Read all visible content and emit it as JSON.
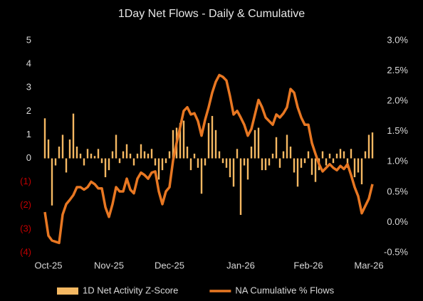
{
  "chart_data": {
    "type": "bar-line",
    "title": "1Day Net Flows - Daily & Cumulative",
    "categories": [
      null,
      "Oct-25",
      null,
      null,
      null,
      null,
      null,
      null,
      null,
      null,
      null,
      null,
      null,
      null,
      null,
      null,
      null,
      null,
      "Nov-25",
      null,
      null,
      null,
      null,
      null,
      null,
      null,
      null,
      null,
      null,
      null,
      null,
      null,
      null,
      null,
      null,
      "Dec-25",
      null,
      null,
      null,
      null,
      null,
      null,
      null,
      null,
      null,
      null,
      null,
      null,
      null,
      null,
      null,
      null,
      null,
      null,
      null,
      "Jan-26",
      null,
      null,
      null,
      null,
      null,
      null,
      null,
      null,
      null,
      null,
      null,
      null,
      null,
      null,
      null,
      null,
      null,
      null,
      "Feb-26",
      null,
      null,
      null,
      null,
      null,
      null,
      null,
      null,
      null,
      null,
      null,
      null,
      null,
      null,
      null,
      null,
      "Mar-26",
      null
    ],
    "series": [
      {
        "name": "1D Net Activity Z-Score",
        "kind": "bar",
        "color": "#f5b862",
        "values": [
          1.7,
          0.8,
          -2.0,
          -0.3,
          0.5,
          1.0,
          -0.6,
          0.8,
          1.9,
          0.5,
          0.2,
          -0.3,
          0.4,
          0.2,
          0.1,
          0.4,
          -0.2,
          -0.8,
          -0.5,
          0.3,
          1.0,
          -0.2,
          0.3,
          0.6,
          0.2,
          -0.3,
          0.2,
          0.6,
          0.3,
          0.2,
          0.4,
          -0.3,
          -0.9,
          -0.5,
          -0.2,
          0.3,
          1.2,
          1.3,
          1.5,
          1.6,
          0.5,
          -0.5,
          0.2,
          -0.4,
          -1.5,
          -0.3,
          1.5,
          1.8,
          1.2,
          0.3,
          -0.2,
          -0.4,
          -0.8,
          -1.2,
          0.4,
          -2.4,
          -0.3,
          -0.9,
          0.5,
          1.2,
          1.3,
          -0.5,
          -0.5,
          -0.3,
          0.2,
          0.9,
          -0.4,
          0.3,
          1.0,
          0.5,
          -0.6,
          -1.2,
          -0.4,
          -0.2,
          0.3,
          -0.7,
          -1.0,
          -0.5,
          0.3,
          -0.3,
          0.2,
          -0.2,
          0.2,
          0.4,
          0.3,
          -0.4,
          0.4,
          -0.8,
          -0.6,
          -1.1,
          0.3,
          1.0,
          1.1
        ]
      },
      {
        "name": "NA Cumulative % Flows",
        "kind": "line",
        "axis": "y2",
        "color": "#e87722",
        "values": [
          0.17,
          -0.22,
          -0.3,
          -0.32,
          -0.34,
          0.13,
          0.3,
          0.37,
          0.45,
          0.58,
          0.58,
          0.54,
          0.58,
          0.67,
          0.63,
          0.56,
          0.56,
          0.25,
          0.09,
          0.3,
          0.58,
          0.51,
          0.51,
          0.72,
          0.54,
          0.48,
          0.72,
          0.82,
          0.78,
          0.72,
          0.82,
          0.84,
          0.51,
          0.3,
          0.51,
          0.58,
          1.02,
          1.31,
          1.57,
          1.84,
          1.9,
          1.78,
          1.8,
          1.67,
          1.43,
          1.69,
          1.9,
          2.14,
          2.32,
          2.43,
          2.4,
          2.34,
          2.08,
          1.78,
          1.84,
          1.73,
          1.61,
          1.43,
          1.54,
          1.78,
          2.02,
          1.9,
          1.73,
          1.67,
          1.61,
          1.78,
          1.73,
          1.8,
          1.9,
          2.2,
          2.14,
          1.9,
          1.73,
          1.61,
          1.61,
          1.31,
          1.13,
          0.96,
          0.84,
          0.9,
          0.96,
          0.9,
          0.86,
          0.93,
          0.88,
          0.96,
          0.78,
          0.58,
          0.43,
          0.15,
          0.27,
          0.39,
          0.63
        ]
      }
    ],
    "ylim": [
      -4,
      5
    ],
    "yticks": [
      5,
      4,
      3,
      2,
      1,
      0,
      {
        "value": -1,
        "label": "(1)"
      },
      {
        "value": -2,
        "label": "(2)"
      },
      {
        "value": -3,
        "label": "(3)"
      },
      {
        "value": -4,
        "label": "(4)"
      }
    ],
    "y2lim": [
      -0.5,
      3.0
    ],
    "y2ticks": [
      {
        "value": 3.0,
        "label": "3.0%"
      },
      {
        "value": 2.5,
        "label": "2.5%"
      },
      {
        "value": 2.0,
        "label": "2.0%"
      },
      {
        "value": 1.5,
        "label": "1.5%"
      },
      {
        "value": 1.0,
        "label": "1.0%"
      },
      {
        "value": 0.5,
        "label": "0.5%"
      },
      {
        "value": 0.0,
        "label": "0.0%"
      },
      {
        "value": -0.5,
        "label": "-0.5%"
      }
    ],
    "negative_label_color": "#c00000",
    "grid": false,
    "legend": "bottom"
  }
}
